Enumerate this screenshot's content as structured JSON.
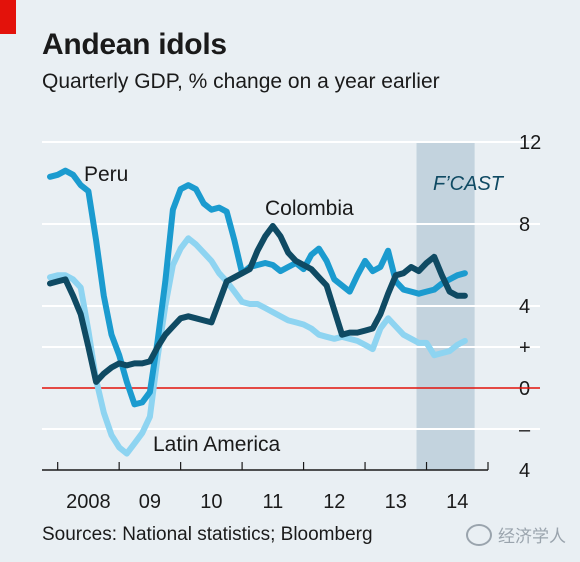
{
  "title": "Andean idols",
  "subtitle": "Quarterly GDP,  % change on a year earlier",
  "source": "Sources: National statistics; Bloomberg",
  "watermark": "经济学人",
  "colors": {
    "background": "#e9eff3",
    "forecast_band": "#c3d3de",
    "peru": "#1b9bcf",
    "colombia": "#0f4a63",
    "latin_america": "#8ed4f1",
    "zero_line": "#e3120b",
    "title_tag": "#e3120b"
  },
  "chart_data": {
    "type": "line",
    "title": "Andean idols",
    "subtitle": "Quarterly GDP,  % change on a year earlier",
    "x_tick_labels": [
      "2008",
      "09",
      "10",
      "11",
      "12",
      "13",
      "14"
    ],
    "x_range": [
      2007.875,
      2015.0
    ],
    "y_range": [
      -4,
      12
    ],
    "y_ticks": [
      {
        "value": 12,
        "label": "12"
      },
      {
        "value": 8,
        "label": "8"
      },
      {
        "value": 4,
        "label": "4"
      },
      {
        "value": 2,
        "label": "+"
      },
      {
        "value": 0,
        "label": "0"
      },
      {
        "value": -2,
        "label": "–"
      },
      {
        "value": -4,
        "label": "4"
      }
    ],
    "forecast": {
      "label": "F’CAST",
      "from": 2014.0,
      "to": 2014.75
    },
    "zero_line": 0,
    "grid": true,
    "series": [
      {
        "name": "Peru",
        "key": "peru",
        "x": [
          2007.875,
          2008.0,
          2008.125,
          2008.25,
          2008.375,
          2008.5,
          2008.625,
          2008.75,
          2008.875,
          2009.0,
          2009.125,
          2009.25,
          2009.375,
          2009.5,
          2009.625,
          2009.75,
          2009.875,
          2010.0,
          2010.125,
          2010.25,
          2010.375,
          2010.5,
          2010.625,
          2010.75,
          2010.875,
          2011.0,
          2011.125,
          2011.25,
          2011.375,
          2011.5,
          2011.625,
          2011.75,
          2011.875,
          2012.0,
          2012.125,
          2012.25,
          2012.375,
          2012.5,
          2012.625,
          2012.75,
          2012.875,
          2013.0,
          2013.125,
          2013.25,
          2013.375,
          2013.5,
          2013.625,
          2013.75,
          2013.875,
          2014.0,
          2014.125,
          2014.25,
          2014.375,
          2014.5,
          2014.625
        ],
        "y": [
          10.3,
          10.4,
          10.6,
          10.4,
          9.9,
          9.6,
          7.2,
          4.5,
          2.6,
          1.6,
          0.3,
          -0.8,
          -0.7,
          -0.2,
          2.3,
          5.2,
          8.7,
          9.7,
          9.9,
          9.7,
          9.0,
          8.7,
          8.8,
          8.6,
          7.2,
          5.6,
          5.9,
          6.0,
          6.1,
          6.0,
          5.7,
          5.9,
          6.1,
          5.8,
          6.5,
          6.8,
          6.2,
          5.3,
          5.0,
          4.7,
          5.5,
          6.2,
          5.7,
          5.9,
          6.7,
          5.2,
          4.8,
          4.7,
          4.6,
          4.7,
          4.8,
          5.1,
          5.3,
          5.5,
          5.6
        ]
      },
      {
        "name": "Colombia",
        "key": "colombia",
        "x": [
          2007.875,
          2008.0,
          2008.125,
          2008.25,
          2008.375,
          2008.5,
          2008.625,
          2008.75,
          2008.875,
          2009.0,
          2009.125,
          2009.25,
          2009.375,
          2009.5,
          2009.625,
          2009.75,
          2009.875,
          2010.0,
          2010.125,
          2010.25,
          2010.375,
          2010.5,
          2010.625,
          2010.75,
          2010.875,
          2011.0,
          2011.125,
          2011.25,
          2011.375,
          2011.5,
          2011.625,
          2011.75,
          2011.875,
          2012.0,
          2012.125,
          2012.25,
          2012.375,
          2012.5,
          2012.625,
          2012.75,
          2012.875,
          2013.0,
          2013.125,
          2013.25,
          2013.375,
          2013.5,
          2013.625,
          2013.75,
          2013.875,
          2014.0,
          2014.125,
          2014.25,
          2014.375,
          2014.5,
          2014.625
        ],
        "y": [
          5.1,
          5.2,
          5.3,
          4.5,
          3.6,
          2.0,
          0.3,
          0.7,
          1.0,
          1.2,
          1.1,
          1.2,
          1.2,
          1.3,
          2.0,
          2.6,
          3.0,
          3.4,
          3.5,
          3.4,
          3.3,
          3.2,
          4.2,
          5.2,
          5.4,
          5.6,
          5.8,
          6.7,
          7.4,
          7.9,
          7.4,
          6.6,
          6.2,
          6.0,
          5.8,
          5.4,
          5.0,
          3.8,
          2.6,
          2.7,
          2.7,
          2.8,
          2.9,
          3.6,
          4.6,
          5.5,
          5.6,
          5.9,
          5.7,
          6.1,
          6.4,
          5.5,
          4.7,
          4.5,
          4.5
        ]
      },
      {
        "name": "Latin America",
        "key": "latin_america",
        "x": [
          2007.875,
          2008.0,
          2008.125,
          2008.25,
          2008.375,
          2008.5,
          2008.625,
          2008.75,
          2008.875,
          2009.0,
          2009.125,
          2009.25,
          2009.375,
          2009.5,
          2009.625,
          2009.75,
          2009.875,
          2010.0,
          2010.125,
          2010.25,
          2010.375,
          2010.5,
          2010.625,
          2010.75,
          2010.875,
          2011.0,
          2011.125,
          2011.25,
          2011.375,
          2011.5,
          2011.625,
          2011.75,
          2011.875,
          2012.0,
          2012.125,
          2012.25,
          2012.375,
          2012.5,
          2012.625,
          2012.75,
          2012.875,
          2013.0,
          2013.125,
          2013.25,
          2013.375,
          2013.5,
          2013.625,
          2013.75,
          2013.875,
          2014.0,
          2014.125,
          2014.25,
          2014.375,
          2014.5,
          2014.625
        ],
        "y": [
          5.4,
          5.5,
          5.5,
          5.3,
          4.9,
          2.8,
          0.4,
          -1.2,
          -2.3,
          -2.9,
          -3.2,
          -2.7,
          -2.2,
          -1.4,
          1.5,
          4.0,
          6.0,
          6.8,
          7.3,
          7.0,
          6.6,
          6.2,
          5.6,
          5.2,
          4.7,
          4.2,
          4.1,
          4.1,
          3.9,
          3.7,
          3.5,
          3.3,
          3.2,
          3.1,
          2.9,
          2.6,
          2.5,
          2.4,
          2.5,
          2.4,
          2.3,
          2.1,
          1.9,
          2.9,
          3.4,
          3.0,
          2.6,
          2.4,
          2.2,
          2.2,
          1.6,
          1.7,
          1.8,
          2.1,
          2.3
        ]
      }
    ],
    "series_labels": [
      {
        "text": "Peru",
        "series": "peru"
      },
      {
        "text": "Colombia",
        "series": "colombia"
      },
      {
        "text": "Latin America",
        "series": "latin_america"
      }
    ]
  }
}
